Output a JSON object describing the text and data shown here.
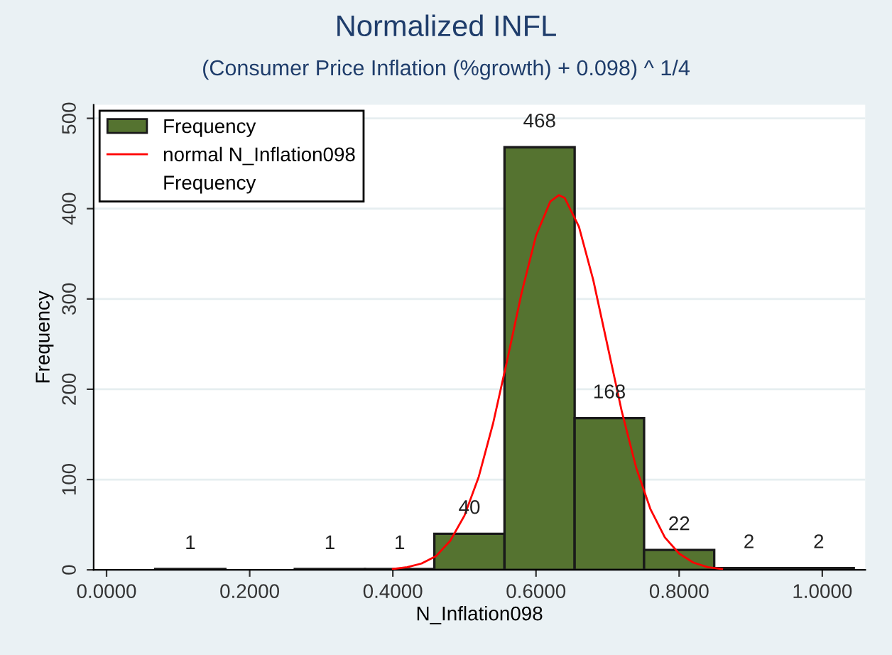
{
  "chart_data": {
    "type": "histogram",
    "title": "Normalized INFL",
    "subtitle": "(Consumer Price Inflation (%growth) + 0.098) ^ 1/4",
    "xlabel": "N_Inflation098",
    "ylabel": "Frequency",
    "bins": [
      0.068,
      0.166,
      0.263,
      0.361,
      0.458,
      0.556,
      0.654,
      0.751,
      0.849,
      0.946,
      1.044
    ],
    "series": [
      {
        "name": "Frequency",
        "color": "#557330",
        "values": [
          1,
          0,
          1,
          1,
          40,
          468,
          168,
          22,
          2,
          2
        ],
        "value_labels": [
          "1",
          null,
          "1",
          "1",
          "40",
          "468",
          "168",
          "22",
          "2",
          "2"
        ]
      },
      {
        "name": "normal N_Inflation098",
        "type": "line",
        "color": "#ff0000",
        "x": [
          0.4,
          0.42,
          0.44,
          0.46,
          0.48,
          0.5,
          0.52,
          0.54,
          0.56,
          0.58,
          0.6,
          0.62,
          0.632,
          0.64,
          0.66,
          0.68,
          0.7,
          0.72,
          0.74,
          0.76,
          0.78,
          0.8,
          0.82,
          0.84,
          0.86
        ],
        "values": [
          1,
          3,
          7,
          15,
          32,
          60,
          103,
          162,
          233,
          307,
          370,
          408,
          415,
          412,
          380,
          321,
          248,
          175,
          113,
          67,
          36,
          18,
          8,
          3,
          1
        ]
      },
      {
        "name": "Frequency",
        "type": "scatter",
        "marker": "none"
      }
    ],
    "xlim": [
      -0.018,
      1.06
    ],
    "ylim": [
      0,
      515
    ],
    "xticks": [
      {
        "value": 0,
        "label": "0.0000"
      },
      {
        "value": 0.2,
        "label": "0.2000"
      },
      {
        "value": 0.4,
        "label": "0.4000"
      },
      {
        "value": 0.6,
        "label": "0.6000"
      },
      {
        "value": 0.8,
        "label": "0.8000"
      },
      {
        "value": 1.0,
        "label": "1.0000"
      }
    ],
    "yticks": [
      0,
      100,
      200,
      300,
      400,
      500
    ],
    "grid": "y",
    "legend": "top left"
  }
}
